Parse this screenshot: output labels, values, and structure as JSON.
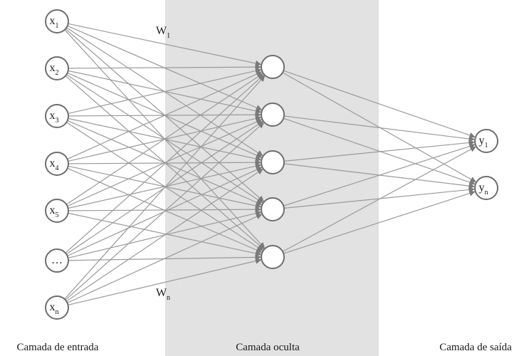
{
  "layers": {
    "input": {
      "label": "Camada de entrada",
      "nodes": [
        {
          "base": "x",
          "sub": "1"
        },
        {
          "base": "x",
          "sub": "2"
        },
        {
          "base": "x",
          "sub": "3"
        },
        {
          "base": "x",
          "sub": "4"
        },
        {
          "base": "x",
          "sub": "5"
        },
        {
          "base": "…",
          "sub": ""
        },
        {
          "base": "x",
          "sub": "n"
        }
      ]
    },
    "hidden": {
      "label": "Camada oculta",
      "node_count": 5
    },
    "output": {
      "label": "Camada de saída",
      "nodes": [
        {
          "base": "y",
          "sub": "1"
        },
        {
          "base": "y",
          "sub": "n"
        }
      ]
    }
  },
  "weights": {
    "first": {
      "base": "W",
      "sub": "1"
    },
    "last": {
      "base": "W",
      "sub": "n"
    }
  },
  "colors": {
    "band": "#e2e2e2",
    "edge": "#9a9a9a",
    "node_stroke": "#6e6e6e",
    "text": "#1a1a1a"
  }
}
